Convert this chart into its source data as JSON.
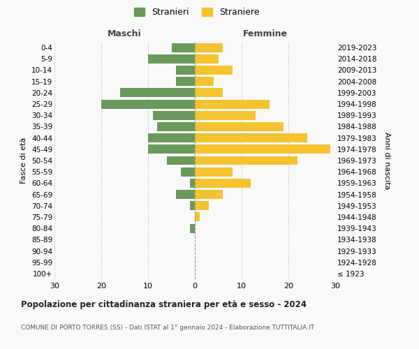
{
  "age_groups": [
    "100+",
    "95-99",
    "90-94",
    "85-89",
    "80-84",
    "75-79",
    "70-74",
    "65-69",
    "60-64",
    "55-59",
    "50-54",
    "45-49",
    "40-44",
    "35-39",
    "30-34",
    "25-29",
    "20-24",
    "15-19",
    "10-14",
    "5-9",
    "0-4"
  ],
  "birth_years": [
    "≤ 1923",
    "1924-1928",
    "1929-1933",
    "1934-1938",
    "1939-1943",
    "1944-1948",
    "1949-1953",
    "1954-1958",
    "1959-1963",
    "1964-1968",
    "1969-1973",
    "1974-1978",
    "1979-1983",
    "1984-1988",
    "1989-1993",
    "1994-1998",
    "1999-2003",
    "2004-2008",
    "2009-2013",
    "2014-2018",
    "2019-2023"
  ],
  "maschi": [
    0,
    0,
    0,
    0,
    1,
    0,
    1,
    4,
    1,
    3,
    6,
    10,
    10,
    8,
    9,
    20,
    16,
    4,
    4,
    10,
    5
  ],
  "femmine": [
    0,
    0,
    0,
    0,
    0,
    1,
    3,
    6,
    12,
    8,
    22,
    29,
    24,
    19,
    13,
    16,
    6,
    4,
    8,
    5,
    6
  ],
  "male_color": "#6a9a5b",
  "female_color": "#f5c330",
  "background_color": "#f9f9f9",
  "grid_color": "#cccccc",
  "title": "Popolazione per cittadinanza straniera per età e sesso - 2024",
  "subtitle": "COMUNE DI PORTO TORRES (SS) - Dati ISTAT al 1° gennaio 2024 - Elaborazione TUTTITALIA.IT",
  "xlabel_left": "Maschi",
  "xlabel_right": "Femmine",
  "ylabel_left": "Fasce di età",
  "ylabel_right": "Anni di nascita",
  "legend_male": "Stranieri",
  "legend_female": "Straniere",
  "xlim": 30,
  "bar_height": 0.8
}
